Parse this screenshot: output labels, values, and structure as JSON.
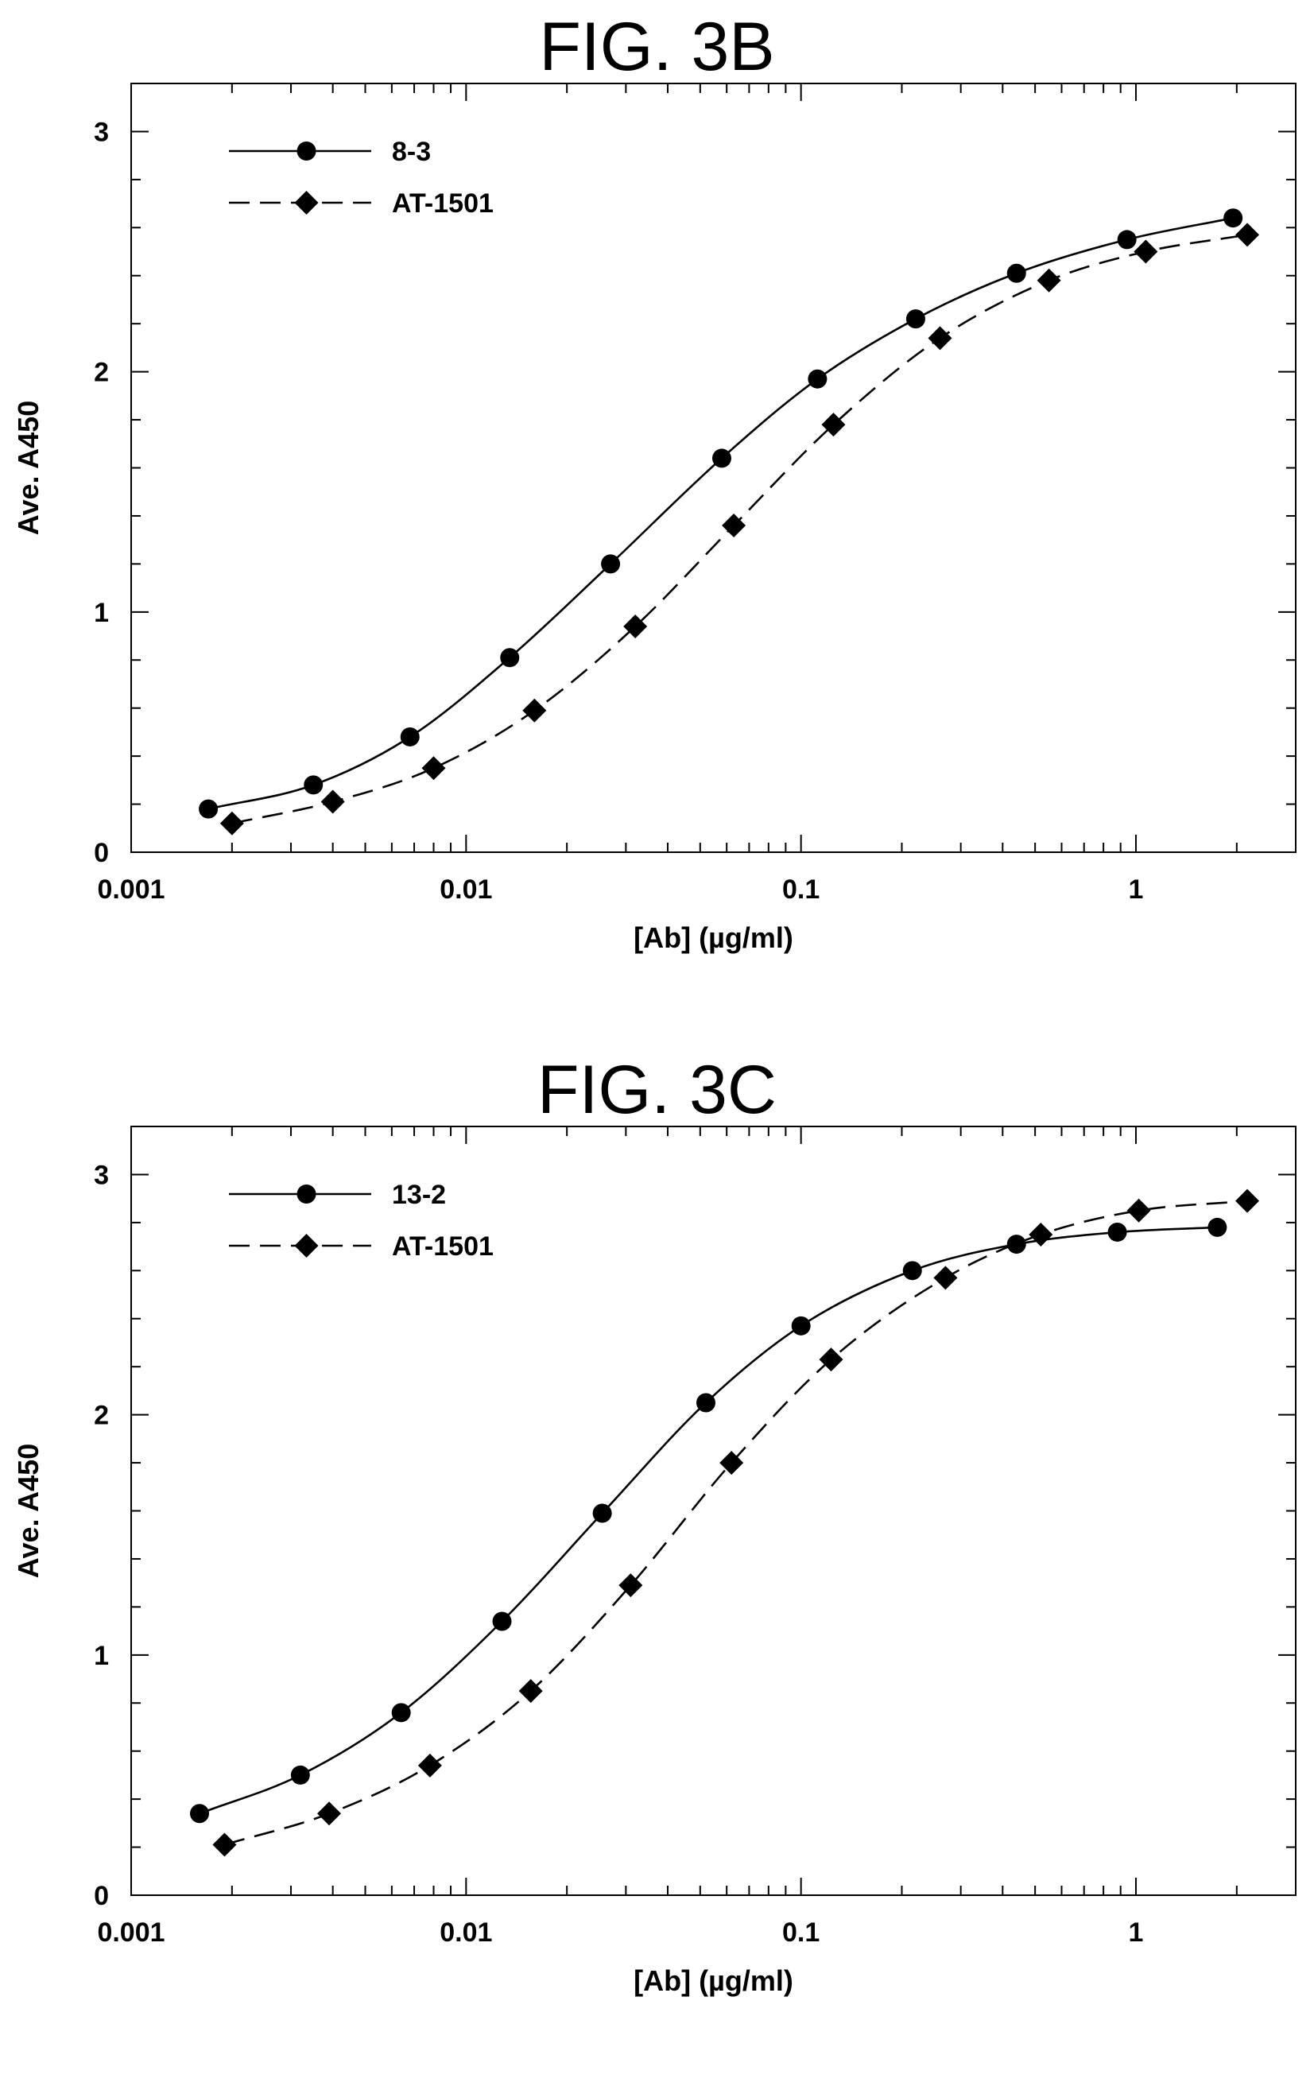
{
  "figures": [
    {
      "title": "FIG. 3B"
    },
    {
      "title": "FIG. 3C"
    }
  ],
  "chart_data": [
    {
      "type": "line",
      "title": "FIG. 3B",
      "xlabel": "[Ab]  (µg/ml)",
      "ylabel": "Ave. A450",
      "xscale": "log",
      "xlim": [
        0.001,
        3
      ],
      "ylim": [
        0,
        3.2
      ],
      "xticks": [
        0.001,
        0.01,
        0.1,
        1
      ],
      "xtick_labels": [
        "0.001",
        "0.01",
        "0.1",
        "1"
      ],
      "yticks": [
        0,
        1,
        2,
        3
      ],
      "ytick_labels": [
        "0",
        "1",
        "2",
        "3"
      ],
      "grid": false,
      "legend": "top-left",
      "series": [
        {
          "name": "8-3",
          "marker": "circle",
          "line": "solid",
          "x": [
            0.0017,
            0.0035,
            0.0068,
            0.0135,
            0.027,
            0.058,
            0.112,
            0.22,
            0.44,
            0.94,
            1.95
          ],
          "y": [
            0.18,
            0.28,
            0.48,
            0.81,
            1.2,
            1.64,
            1.97,
            2.22,
            2.41,
            2.55,
            2.64
          ]
        },
        {
          "name": "AT-1501",
          "marker": "diamond",
          "line": "dashed",
          "x": [
            0.002,
            0.004,
            0.008,
            0.016,
            0.032,
            0.063,
            0.125,
            0.26,
            0.55,
            1.07,
            2.15
          ],
          "y": [
            0.12,
            0.21,
            0.35,
            0.59,
            0.94,
            1.36,
            1.78,
            2.14,
            2.38,
            2.5,
            2.57
          ]
        }
      ]
    },
    {
      "type": "line",
      "title": "FIG. 3C",
      "xlabel": "[Ab]  (µg/ml)",
      "ylabel": "Ave. A450",
      "xscale": "log",
      "xlim": [
        0.001,
        3
      ],
      "ylim": [
        0,
        3.2
      ],
      "xticks": [
        0.001,
        0.01,
        0.1,
        1
      ],
      "xtick_labels": [
        "0.001",
        "0.01",
        "0.1",
        "1"
      ],
      "yticks": [
        0,
        1,
        2,
        3
      ],
      "ytick_labels": [
        "0",
        "1",
        "2",
        "3"
      ],
      "grid": false,
      "legend": "top-left",
      "series": [
        {
          "name": "13-2",
          "marker": "circle",
          "line": "solid",
          "x": [
            0.0016,
            0.0032,
            0.0064,
            0.0128,
            0.0255,
            0.052,
            0.1,
            0.215,
            0.44,
            0.88,
            1.75
          ],
          "y": [
            0.34,
            0.5,
            0.76,
            1.14,
            1.59,
            2.05,
            2.37,
            2.6,
            2.71,
            2.76,
            2.78
          ]
        },
        {
          "name": "AT-1501",
          "marker": "diamond",
          "line": "dashed",
          "x": [
            0.0019,
            0.0039,
            0.0078,
            0.0156,
            0.031,
            0.062,
            0.123,
            0.27,
            0.52,
            1.02,
            2.15
          ],
          "y": [
            0.21,
            0.34,
            0.54,
            0.85,
            1.29,
            1.8,
            2.23,
            2.57,
            2.75,
            2.85,
            2.89
          ]
        }
      ]
    }
  ]
}
